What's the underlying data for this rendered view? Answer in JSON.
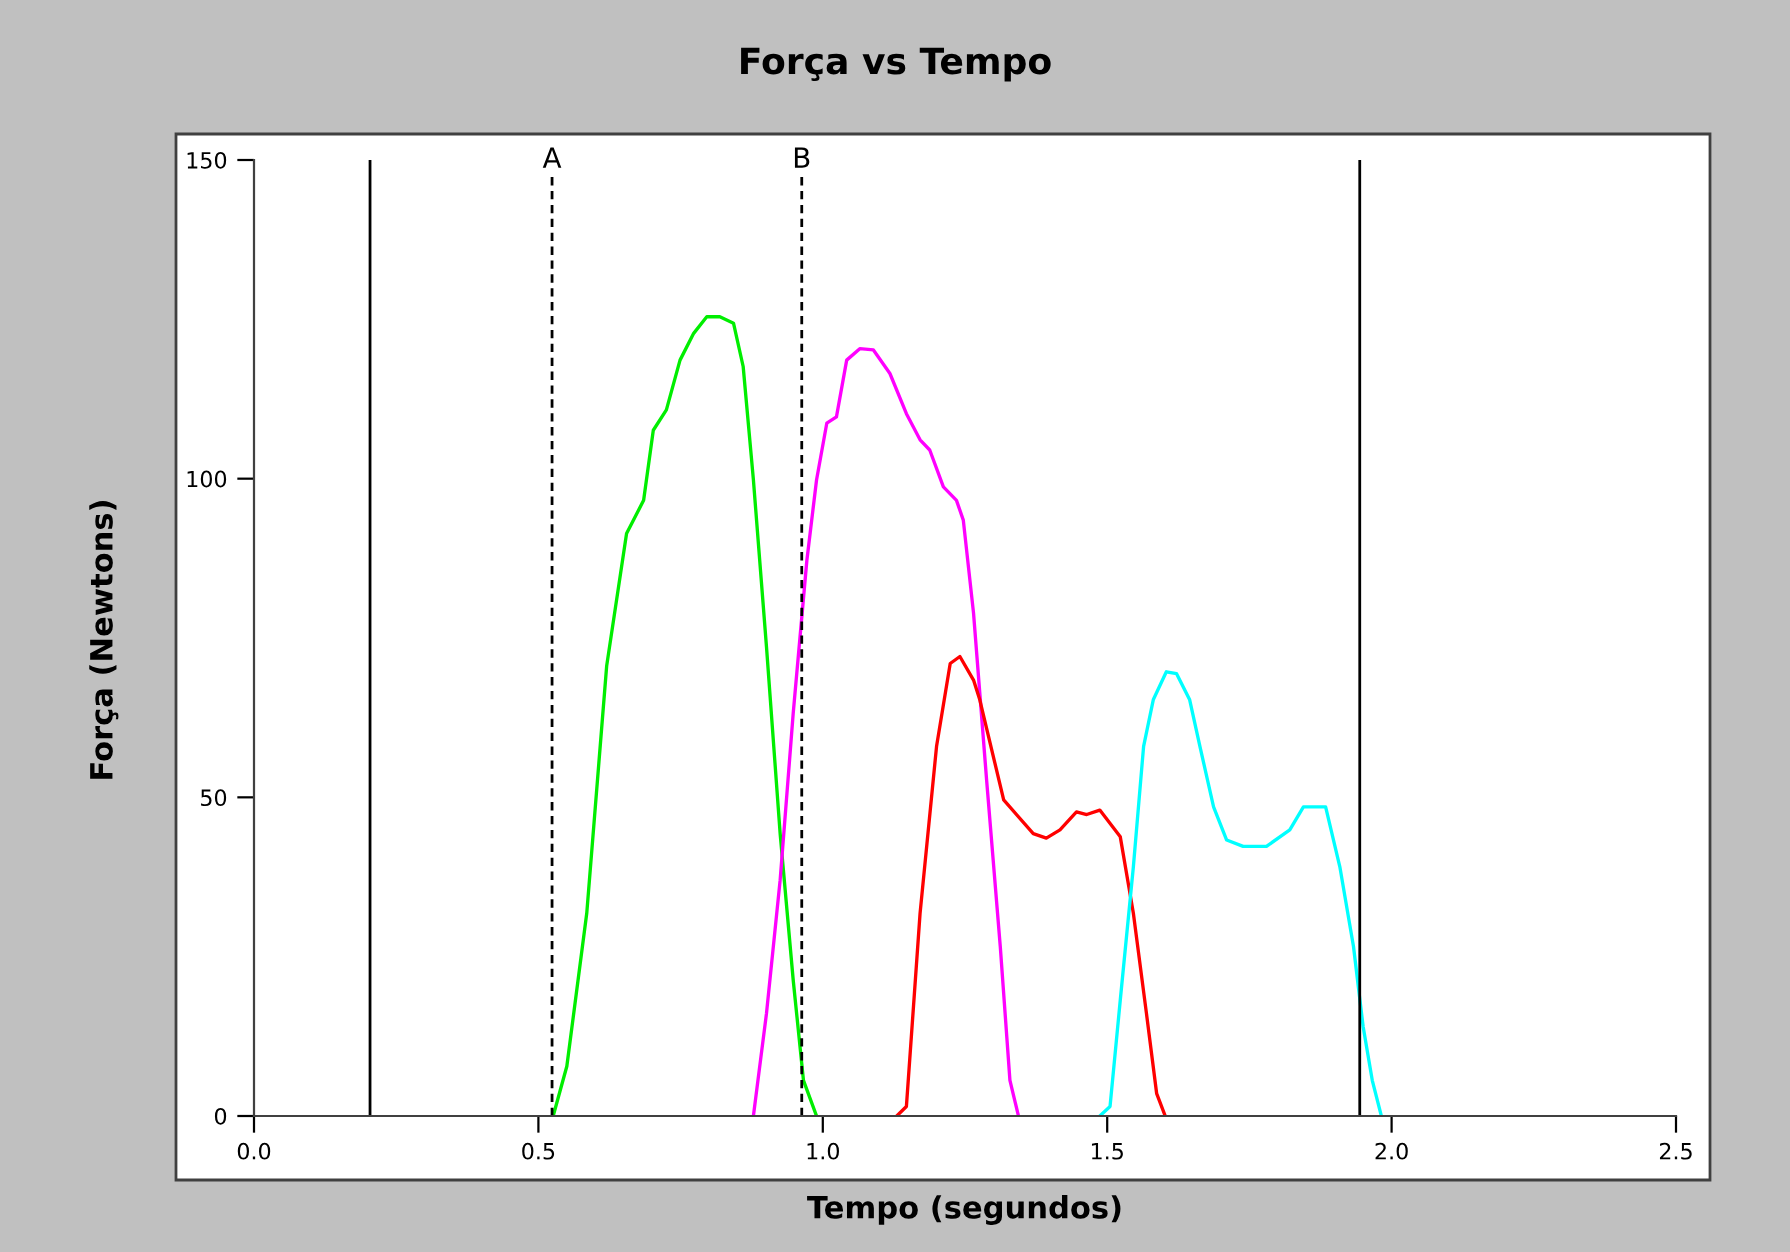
{
  "chart_data": {
    "type": "line",
    "title": "Força vs Tempo",
    "xlabel": "Tempo (segundos)",
    "ylabel": "Força (Newtons)",
    "xlim": [
      0,
      2.5
    ],
    "ylim": [
      0,
      150
    ],
    "xticks": [
      {
        "value": 0,
        "label": "0.0"
      },
      {
        "value": 0.5,
        "label": "0.5"
      },
      {
        "value": 1,
        "label": "1.0"
      },
      {
        "value": 1.5,
        "label": "1.5"
      },
      {
        "value": 2,
        "label": "2.0"
      },
      {
        "value": 2.5,
        "label": "2.5"
      }
    ],
    "yticks": [
      0,
      50,
      100,
      150
    ],
    "grid": false,
    "marker": "none",
    "line_style": "solid",
    "series": [
      {
        "color": "#00ee00",
        "x": [
          0.526,
          0.55,
          0.585,
          0.62,
          0.655,
          0.685,
          0.702,
          0.725,
          0.749,
          0.773,
          0.796,
          0.819,
          0.843,
          0.86,
          0.878,
          0.901,
          0.925,
          0.948,
          0.966,
          0.989
        ],
        "values": [
          0,
          7.8,
          31.8,
          70.6,
          91.4,
          96.6,
          107.6,
          110.8,
          118.6,
          122.8,
          125.4,
          125.4,
          124.4,
          117.6,
          99.8,
          73.6,
          44.3,
          21.3,
          5.6,
          0
        ]
      },
      {
        "color": "#ff00ff",
        "x": [
          0.878,
          0.901,
          0.925,
          0.948,
          0.972,
          0.989,
          1.007,
          1.024,
          1.042,
          1.065,
          1.089,
          1.118,
          1.147,
          1.171,
          1.188,
          1.212,
          1.235,
          1.247,
          1.265,
          1.288,
          1.312,
          1.329,
          1.344
        ],
        "values": [
          0,
          16.1,
          37,
          63.2,
          87.2,
          99.8,
          108.7,
          109.7,
          118.6,
          120.4,
          120.2,
          116.5,
          110.2,
          106.1,
          104.5,
          98.7,
          96.6,
          93.5,
          78.9,
          52.7,
          26.6,
          5.6,
          0
        ]
      },
      {
        "color": "#ff0000",
        "x": [
          1.13,
          1.147,
          1.171,
          1.2,
          1.224,
          1.241,
          1.265,
          1.276,
          1.318,
          1.37,
          1.393,
          1.417,
          1.446,
          1.464,
          1.487,
          1.523,
          1.546,
          1.569,
          1.587,
          1.602
        ],
        "values": [
          0,
          1.5,
          31.8,
          58,
          71,
          72.1,
          68.4,
          65.3,
          49.6,
          44.3,
          43.6,
          44.9,
          47.7,
          47.3,
          48,
          43.8,
          31.8,
          16.1,
          3.5,
          0
        ]
      },
      {
        "color": "#00ffff",
        "x": [
          1.487,
          1.505,
          1.523,
          1.546,
          1.564,
          1.581,
          1.604,
          1.622,
          1.645,
          1.663,
          1.687,
          1.71,
          1.739,
          1.78,
          1.821,
          1.845,
          1.884,
          1.909,
          1.933,
          1.95,
          1.966,
          1.982
        ],
        "values": [
          0,
          1.5,
          18.2,
          39.1,
          58,
          65.3,
          69.7,
          69.4,
          65.3,
          58,
          48.5,
          43.3,
          42.3,
          42.3,
          44.9,
          48.5,
          48.5,
          39.1,
          26.6,
          14,
          5.6,
          0
        ]
      }
    ],
    "ref_lines": [
      {
        "axis": "x",
        "value": 0.204,
        "color": "#000000",
        "line_style": "solid"
      },
      {
        "axis": "x",
        "value": 0.524,
        "label": "A",
        "color": "#000000",
        "line_style": "dashed"
      },
      {
        "axis": "x",
        "value": 0.963,
        "label": "B",
        "color": "#000000",
        "line_style": "dashed"
      },
      {
        "axis": "x",
        "value": 1.944,
        "color": "#000000",
        "line_style": "solid"
      }
    ]
  }
}
